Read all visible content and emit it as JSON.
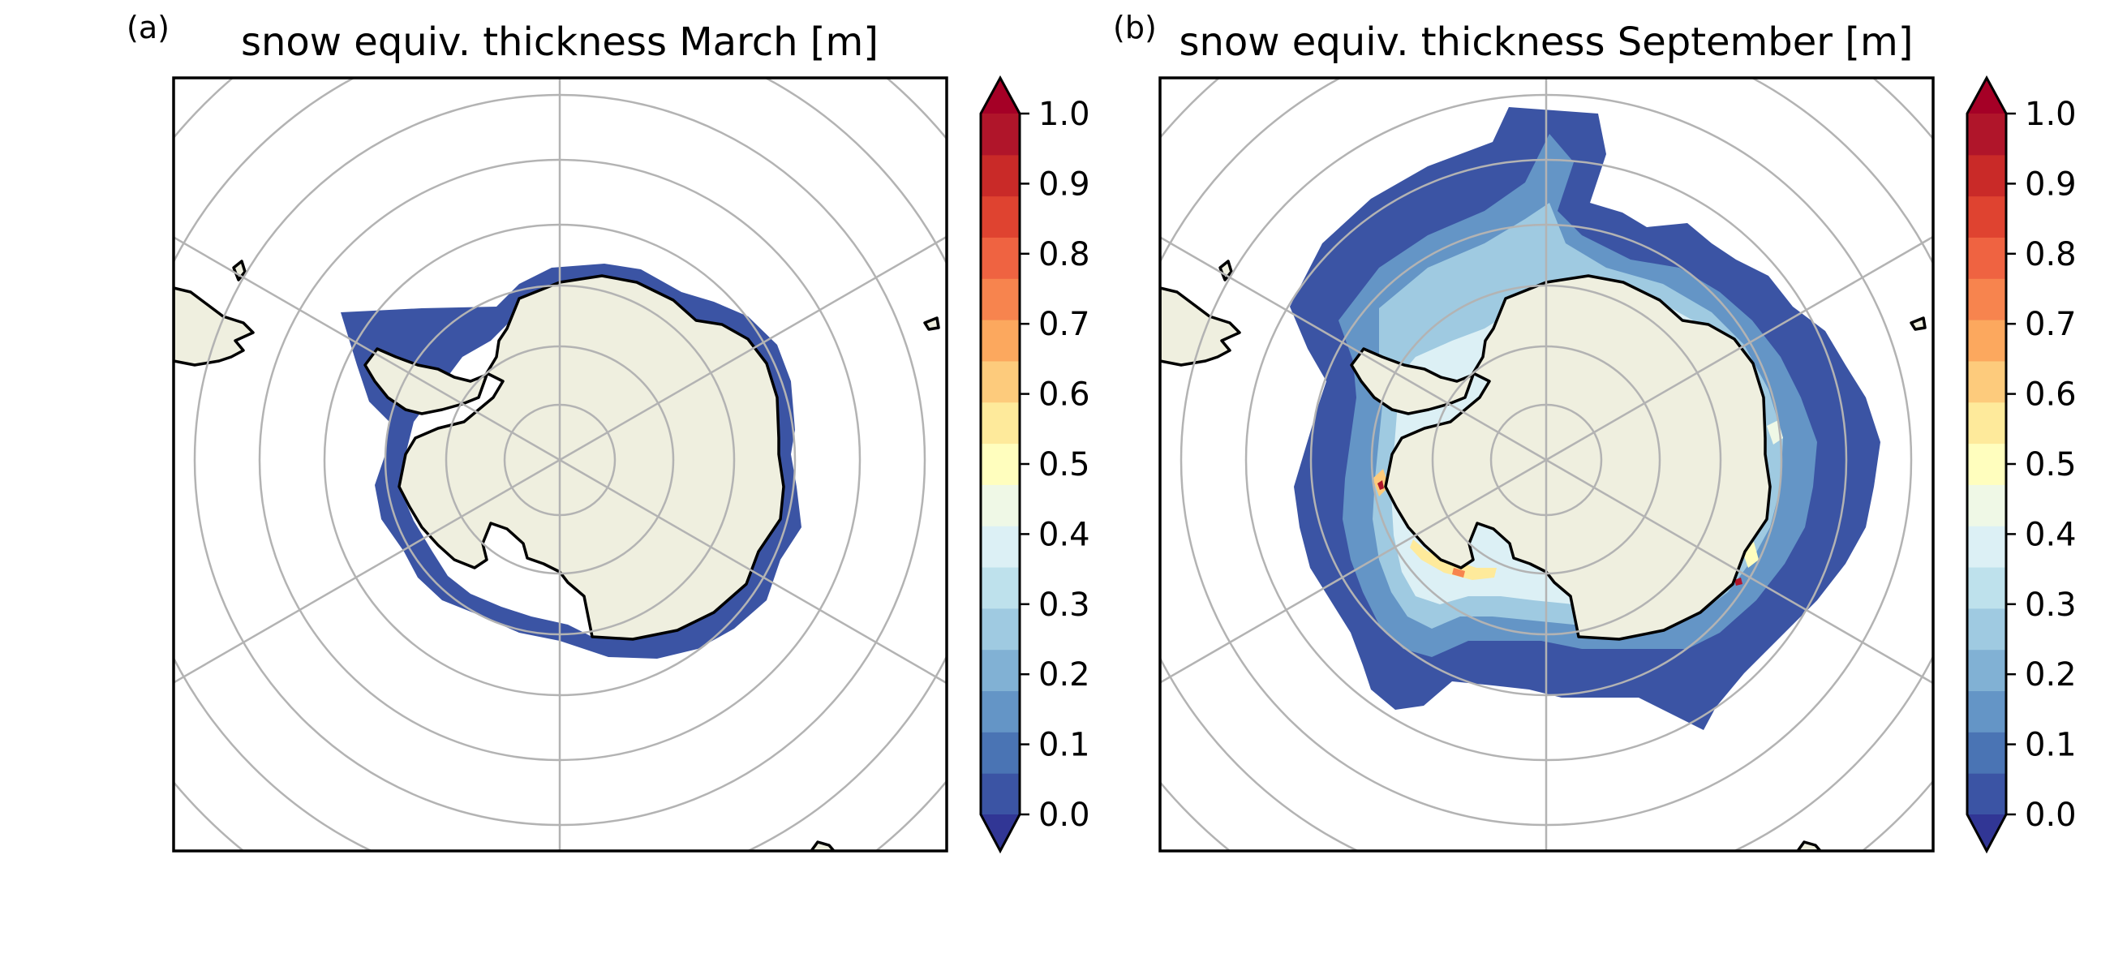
{
  "chart_data": [
    {
      "type": "heatmap",
      "panel_label": "(a)",
      "title": "snow equiv. thickness March [m]",
      "projection": "south polar stereographic",
      "colorbar": {
        "min": 0.0,
        "max": 1.0,
        "step": 0.05,
        "extend": "both",
        "ticks": [
          "0.0",
          "0.1",
          "0.2",
          "0.3",
          "0.4",
          "0.5",
          "0.6",
          "0.7",
          "0.8",
          "0.9",
          "1.0"
        ]
      },
      "field_summary": {
        "extent": "thin ring close to the Antarctic coast, widest in the Weddell Sea and Ross Sea",
        "typical_value_range_m": [
          0.0,
          0.05
        ]
      }
    },
    {
      "type": "heatmap",
      "panel_label": "(b)",
      "title": "snow equiv. thickness September [m]",
      "projection": "south polar stereographic",
      "colorbar": {
        "min": 0.0,
        "max": 1.0,
        "step": 0.05,
        "extend": "both",
        "ticks": [
          "0.0",
          "0.1",
          "0.2",
          "0.3",
          "0.4",
          "0.5",
          "0.6",
          "0.7",
          "0.8",
          "0.9",
          "1.0"
        ]
      },
      "field_summary": {
        "extent": "broad ring around Antarctica",
        "typical_value_range_m": [
          0.0,
          0.35
        ],
        "coastal_maxima_m": [
          0.5,
          1.0
        ]
      }
    }
  ],
  "colormap": {
    "name": "RdYlBu_r",
    "colors": [
      "#313695",
      "#3b54a4",
      "#4a74b4",
      "#6495c6",
      "#81b1d4",
      "#9fcae1",
      "#bee1ec",
      "#dcf0f5",
      "#eff8e6",
      "#fffebe",
      "#feea9b",
      "#fdcb7c",
      "#fca85e",
      "#f7844e",
      "#ef6341",
      "#df4330",
      "#c92a28",
      "#b0152a",
      "#a50026"
    ]
  },
  "map_colors": {
    "land": "#efefdf",
    "coast": "#000000",
    "grid": "#b3b3b3"
  }
}
